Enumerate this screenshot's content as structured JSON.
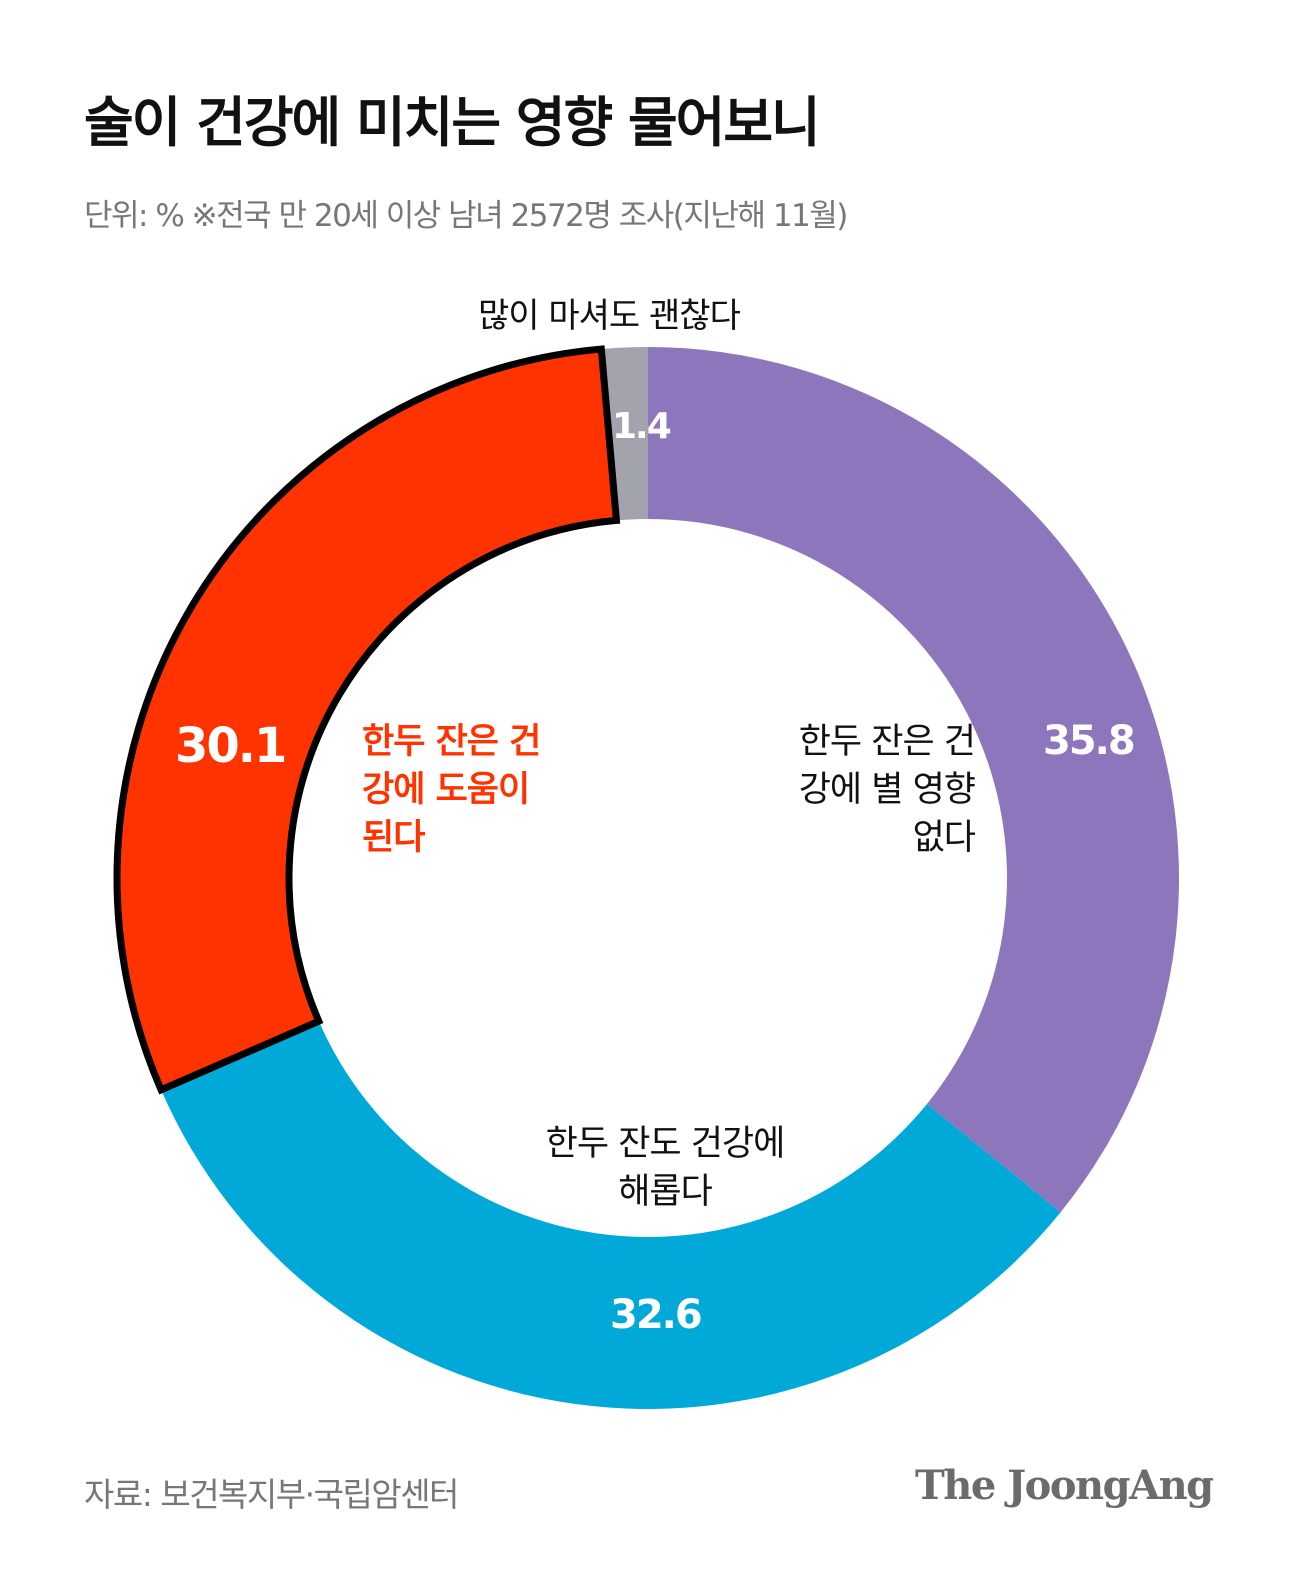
{
  "title": "술이 건강에 미치는 영향 물어보니",
  "subtitle": "단위: %    ※전국 만 20세 이상 남녀 2572명 조사(지난해 11월)",
  "source": "자료: 보건복지부·국립암센터",
  "logo": "The JoongAng",
  "chart_data": {
    "type": "pie",
    "variant": "donut",
    "title": "술이 건강에 미치는 영향 물어보니",
    "unit": "%",
    "start": "top",
    "direction": "clockwise",
    "slices": [
      {
        "label": "한두 잔은 건강에 별 영향 없다",
        "value": 35.8,
        "value_label": "35.8",
        "color": "#8e76bd"
      },
      {
        "label": "한두 잔도 건강에 해롭다",
        "value": 32.6,
        "value_label": "32.6",
        "color": "#00a9d8"
      },
      {
        "label": "한두 잔은 건강에 도움이 된다",
        "value": 30.1,
        "value_label": "30.1",
        "color": "#ff3300",
        "highlighted": true
      },
      {
        "label": "많이 마셔도 괜찮다",
        "value": 1.4,
        "value_label": "1.4",
        "color": "#a3a3ad"
      }
    ]
  }
}
